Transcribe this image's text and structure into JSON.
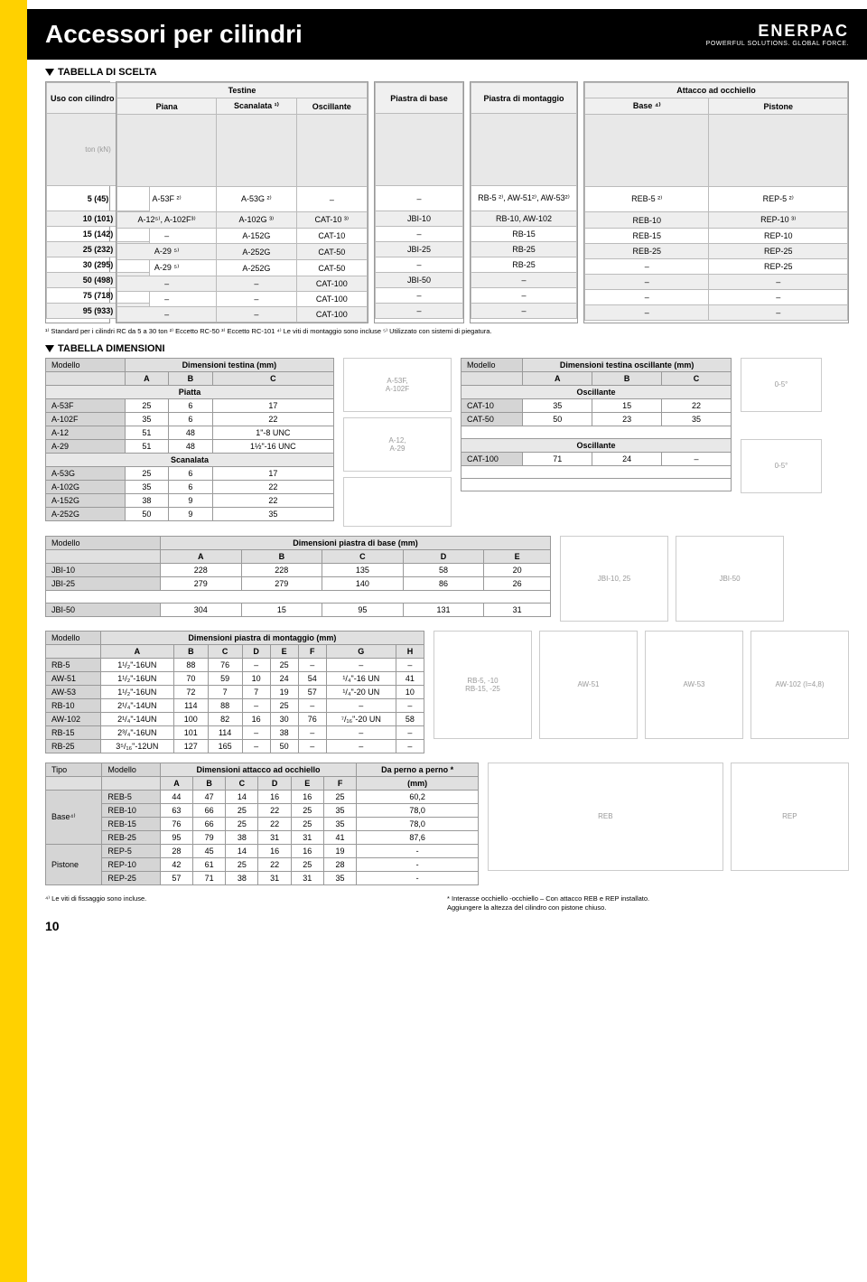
{
  "header": {
    "title": "Accessori per cilindri",
    "brand": "ENERPAC",
    "tagline": "POWERFUL SOLUTIONS. GLOBAL FORCE."
  },
  "sec1": "TABELLA DI SCELTA",
  "sec2": "TABELLA DIMENSIONI",
  "sel": {
    "col0_h": "Uso con cilindro di forza",
    "col0_u": "ton (kN)",
    "grp1": "Testine",
    "g1a": "Piana",
    "g1b": "Scanalata ¹⁾",
    "g1c": "Oscillante",
    "grp2": "Piastra di base",
    "grp3": "Piastra di montaggio",
    "grp4": "Attacco ad occhiello",
    "g4a": "Base ⁴⁾",
    "g4b": "Pistone",
    "rows": [
      {
        "t": "5 (45)",
        "p": "A-53F ²⁾",
        "s": "A-53G ²⁾",
        "o": "–",
        "pb": "–",
        "pm": "RB-5 ²⁾,\nAW-51²⁾, AW-53²⁾",
        "eb": "REB-5 ²⁾",
        "ep": "REP-5 ²⁾"
      },
      {
        "t": "10 (101)",
        "p": "A-12⁵⁾, A-102F³⁾",
        "s": "A-102G ³⁾",
        "o": "CAT-10 ³⁾",
        "pb": "JBI-10",
        "pm": "RB-10, AW-102",
        "eb": "REB-10",
        "ep": "REP-10 ³⁾"
      },
      {
        "t": "15 (142)",
        "p": "–",
        "s": "A-152G",
        "o": "CAT-10",
        "pb": "–",
        "pm": "RB-15",
        "eb": "REB-15",
        "ep": "REP-10"
      },
      {
        "t": "25 (232)",
        "p": "A-29 ⁵⁾",
        "s": "A-252G",
        "o": "CAT-50",
        "pb": "JBI-25",
        "pm": "RB-25",
        "eb": "REB-25",
        "ep": "REP-25"
      },
      {
        "t": "30 (295)",
        "p": "A-29 ⁵⁾",
        "s": "A-252G",
        "o": "CAT-50",
        "pb": "–",
        "pm": "RB-25",
        "eb": "–",
        "ep": "REP-25"
      },
      {
        "t": "50 (498)",
        "p": "–",
        "s": "–",
        "o": "CAT-100",
        "pb": "JBI-50",
        "pm": "–",
        "eb": "–",
        "ep": "–"
      },
      {
        "t": "75 (718)",
        "p": "–",
        "s": "–",
        "o": "CAT-100",
        "pb": "–",
        "pm": "–",
        "eb": "–",
        "ep": "–"
      },
      {
        "t": "95 (933)",
        "p": "–",
        "s": "–",
        "o": "CAT-100",
        "pb": "–",
        "pm": "–",
        "eb": "–",
        "ep": "–"
      }
    ]
  },
  "fn1": "¹⁾ Standard per i cilindri RC da 5 a 30 ton   ²⁾ Eccetto RC-50   ³⁾ Eccetto RC-101   ⁴⁾ Le viti di montaggio sono incluse   ⁵⁾ Utilizzato con sistemi di piegatura.",
  "saddle": {
    "title": "Dimensioni testina  (mm)",
    "model": "Modello",
    "A": "A",
    "B": "B",
    "C": "C",
    "sub1": "Piatta",
    "sub2": "Scanalata",
    "r": [
      [
        "A-53F",
        "25",
        "6",
        "17"
      ],
      [
        "A-102F",
        "35",
        "6",
        "22"
      ],
      [
        "A-12",
        "51",
        "48",
        "1\"-8  UNC"
      ],
      [
        "A-29",
        "51",
        "48",
        "1½\"-16 UNC"
      ]
    ],
    "r2": [
      [
        "A-53G",
        "25",
        "6",
        "17"
      ],
      [
        "A-102G",
        "35",
        "6",
        "22"
      ],
      [
        "A-152G",
        "38",
        "9",
        "22"
      ],
      [
        "A-252G",
        "50",
        "9",
        "35"
      ]
    ],
    "dl1": "A-53F,\nA-102F",
    "dl2": "A-12,\nA-29"
  },
  "tilt": {
    "title": "Dimensioni testina oscillante  (mm)",
    "model": "Modello",
    "sub": "Oscillante",
    "r": [
      [
        "CAT-10",
        "35",
        "15",
        "22"
      ],
      [
        "CAT-50",
        "50",
        "23",
        "35"
      ]
    ],
    "r2": [
      [
        "CAT-100",
        "71",
        "24",
        "–"
      ]
    ],
    "ang": "0-5°"
  },
  "base": {
    "title": "Dimensioni piastra di base (mm)",
    "model": "Modello",
    "h": [
      "A",
      "B",
      "C",
      "D",
      "E"
    ],
    "r": [
      [
        "JBI-10",
        "228",
        "228",
        "135",
        "58",
        "20"
      ],
      [
        "JBI-25",
        "279",
        "279",
        "140",
        "86",
        "26"
      ]
    ],
    "r2": [
      [
        "JBI-50",
        "304",
        "15",
        "95",
        "131",
        "31"
      ]
    ],
    "dl1": "JBI-10, 25",
    "dl2": "JBI-50"
  },
  "mount": {
    "title": "Dimensioni piastra di montaggio (mm)",
    "model": "Modello",
    "h": [
      "A",
      "B",
      "C",
      "D",
      "E",
      "F",
      "G",
      "H"
    ],
    "r": [
      [
        "RB-5",
        "1¹/₂\"-16UN",
        "88",
        "76",
        "–",
        "25",
        "–",
        "–",
        "–"
      ],
      [
        "AW-51",
        "1¹/₂\"-16UN",
        "70",
        "59",
        "10",
        "24",
        "54",
        "¹/₄\"-16 UN",
        "41"
      ],
      [
        "AW-53",
        "1¹/₂\"-16UN",
        "72",
        "7",
        "7",
        "19",
        "57",
        "¹/₄\"-20 UN",
        "10"
      ],
      [
        "RB-10",
        "2¹/₄\"-14UN",
        "114",
        "88",
        "–",
        "25",
        "–",
        "–",
        "–"
      ],
      [
        "AW-102",
        "2¹/₄\"-14UN",
        "100",
        "82",
        "16",
        "30",
        "76",
        "⁷/₁₆\"-20 UN",
        "58"
      ],
      [
        "RB-15",
        "2³/₄\"-16UN",
        "101",
        "114",
        "–",
        "38",
        "–",
        "–",
        "–"
      ],
      [
        "RB-25",
        "3⁵/₁₆\"-12UN",
        "127",
        "165",
        "–",
        "50",
        "–",
        "–",
        "–"
      ]
    ],
    "dl1": "RB-5, -10\nRB-15, -25",
    "dl2": "AW-51",
    "dl3": "AW-53",
    "dl4": "AW-102 (I=4,8)"
  },
  "eye": {
    "title": "Dimensioni attacco ad occhiello",
    "tipo": "Tipo",
    "model": "Modello",
    "pin": "Da perno a perno *",
    "mm": "(mm)",
    "h": [
      "A",
      "B",
      "C",
      "D",
      "E",
      "F"
    ],
    "g1": "Base⁴⁾",
    "g2": "Pistone",
    "r1": [
      [
        "REB-5",
        "44",
        "47",
        "14",
        "16",
        "16",
        "25",
        "60,2"
      ],
      [
        "REB-10",
        "63",
        "66",
        "25",
        "22",
        "25",
        "35",
        "78,0"
      ],
      [
        "REB-15",
        "76",
        "66",
        "25",
        "22",
        "25",
        "35",
        "78,0"
      ],
      [
        "REB-25",
        "95",
        "79",
        "38",
        "31",
        "31",
        "41",
        "87,6"
      ]
    ],
    "r2": [
      [
        "REP-5",
        "28",
        "45",
        "14",
        "16",
        "16",
        "19",
        "-"
      ],
      [
        "REP-10",
        "42",
        "61",
        "25",
        "22",
        "25",
        "28",
        "-"
      ],
      [
        "REP-25",
        "57",
        "71",
        "38",
        "31",
        "31",
        "35",
        "-"
      ]
    ],
    "dl1": "REB",
    "dl2": "REP"
  },
  "fn4": "⁴⁾ Le viti di fissaggio sono incluse.",
  "fn5": "* Interasse occhiello -occhiello – Con attacco REB e REP installato.\nAggiungere la altezza del cilindro con pistone chiuso.",
  "page": "10"
}
